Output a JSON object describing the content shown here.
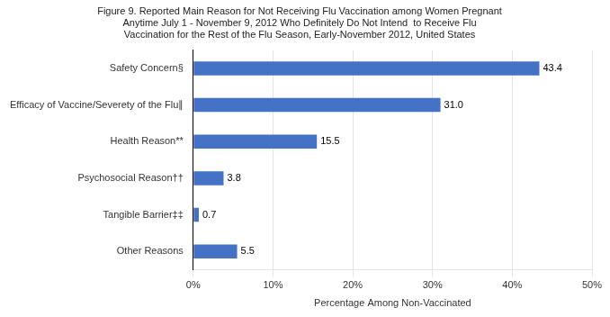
{
  "chart_data": {
    "type": "bar",
    "orientation": "horizontal",
    "title": "Figure 9. Reported Main Reason for Not Receiving Flu Vaccination among Women Pregnant\nAnytime July 1 - November 9, 2012 Who Definitely Do Not Intend  to Receive Flu\nVaccination for the Rest of the Flu Season, Early-November 2012, United States",
    "categories": [
      "Other Reasons",
      "Tangible Barrier‡‡",
      "Psychosocial Reason††",
      "Health Reason**",
      "Efficacy of Vaccine/Severety of the Flu∥",
      "Safety Concern§"
    ],
    "values": [
      5.5,
      0.7,
      3.8,
      15.5,
      31.0,
      43.4
    ],
    "value_labels": [
      "5.5",
      "0.7",
      "3.8",
      "15.5",
      "31.0",
      "43.4"
    ],
    "data_labels": true,
    "color": "#4472C4",
    "xlabel": "Percentage Among Non-Vaccinated",
    "xlim": [
      0,
      50
    ],
    "xticks": [
      {
        "value": 0,
        "label": "0%"
      },
      {
        "value": 10,
        "label": "10%"
      },
      {
        "value": 20,
        "label": "20%"
      },
      {
        "value": 30,
        "label": "30%"
      },
      {
        "value": 40,
        "label": "40%"
      },
      {
        "value": 50,
        "label": "50%"
      }
    ],
    "grid": true
  }
}
